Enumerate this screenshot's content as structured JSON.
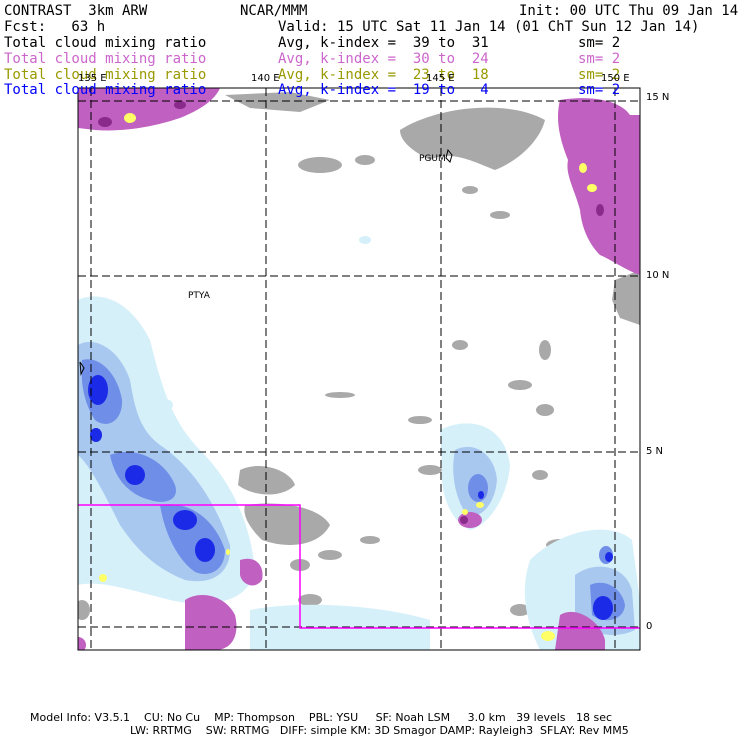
{
  "header": {
    "model": "CONTRAST  3km ARW",
    "center": "NCAR/MMM",
    "init": "Init: 00 UTC Thu 09 Jan 14",
    "fcst": "Fcst:   63 h",
    "valid": "Valid: 15 UTC Sat 11 Jan 14 (01 ChT Sun 12 Jan 14)"
  },
  "legend": [
    {
      "field": "Total cloud mixing ratio",
      "stat": "Avg, k-index =  39 to  31",
      "sm": "sm= 2",
      "color": "#000000"
    },
    {
      "field": "Total cloud mixing ratio",
      "stat": "Avg, k-index =  30 to  24",
      "sm": "sm= 2",
      "color": "#cc66cc"
    },
    {
      "field": "Total cloud mixing ratio",
      "stat": "Avg, k-index =  23 to  18",
      "sm": "sm= 2",
      "color": "#999900"
    },
    {
      "field": "Total cloud mixing ratio",
      "stat": "Avg, k-index =  19 to   4",
      "sm": "sm= 2",
      "color": "#0000ff"
    }
  ],
  "map": {
    "lon_labels": [
      "135 E",
      "140 E",
      "145 E",
      "150 E"
    ],
    "lat_labels": [
      "15 N",
      "10 N",
      "5 N",
      "0"
    ],
    "places": [
      "PGUM",
      "PTYA"
    ],
    "colors": {
      "gray": "#a9a9a9",
      "magenta": "#c060c0",
      "dark_magenta": "#8a2a8a",
      "light_blue": "#d6f0fa",
      "mid_blue": "#a8c8f0",
      "blue": "#6f8ee8",
      "dark_blue": "#1a2ae6",
      "yellow": "#ffff66",
      "domain_box": "#ff00ff"
    }
  },
  "footer": {
    "line1": "Model Info: V3.5.1    CU: No Cu    MP: Thompson    PBL: YSU     SF: Noah LSM     3.0 km   39 levels   18 sec",
    "line2": "LW: RRTMG    SW: RRTMG   DIFF: simple KM: 3D Smagor DAMP: Rayleigh3  SFLAY: Rev MM5"
  }
}
